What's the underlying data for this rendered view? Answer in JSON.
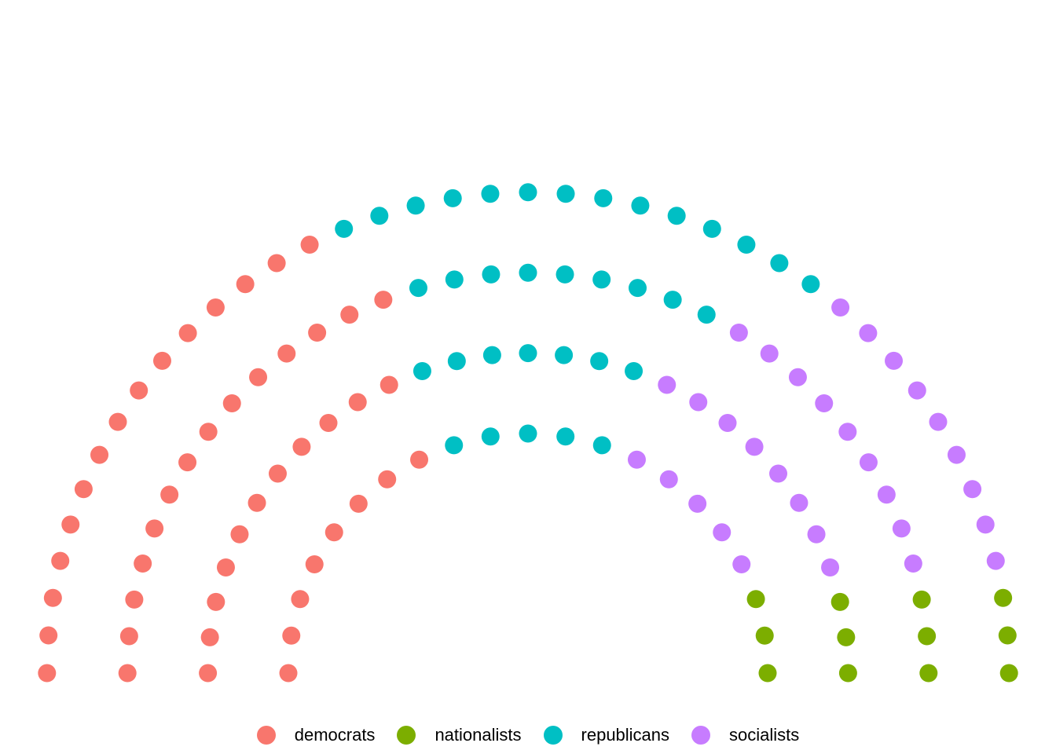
{
  "chart_data": {
    "type": "scatter",
    "subtype": "parliament",
    "title": "",
    "xlabel": "",
    "ylabel": "",
    "grid": false,
    "legend_position": "bottom",
    "total_seats": 126,
    "rows": 4,
    "series": [
      {
        "name": "democrats",
        "seats": 48,
        "color": "#F8766D"
      },
      {
        "name": "nationalists",
        "seats": 12,
        "color": "#7CAE00"
      },
      {
        "name": "republicans",
        "seats": 35,
        "color": "#00BFC4"
      },
      {
        "name": "socialists",
        "seats": 31,
        "color": "#C77CFF"
      }
    ],
    "seats_per_row": [
      {
        "row": 1,
        "total": 21,
        "democrats": 8,
        "republicans": 5,
        "socialists": 5,
        "nationalists": 3
      },
      {
        "row": 2,
        "total": 29,
        "democrats": 11,
        "republicans": 7,
        "socialists": 8,
        "nationalists": 3
      },
      {
        "row": 3,
        "total": 35,
        "democrats": 14,
        "republicans": 9,
        "socialists": 9,
        "nationalists": 3
      },
      {
        "row": 4,
        "total": 41,
        "democrats": 15,
        "republicans": 14,
        "socialists": 9,
        "nationalists": 3
      }
    ]
  }
}
